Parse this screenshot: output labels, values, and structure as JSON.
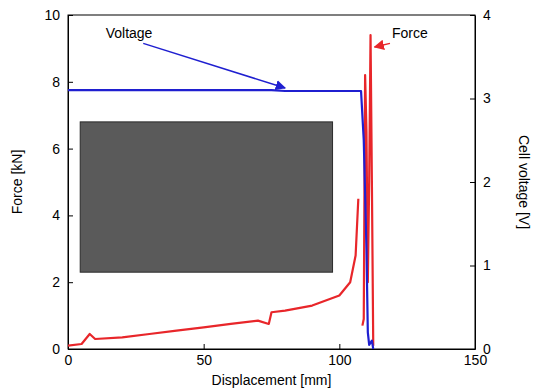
{
  "chart_data": {
    "type": "line",
    "x_label": "Displacement [mm]",
    "y_label": "Force [kN]",
    "y2_label": "Cell voltage [V]",
    "xlim": [
      0,
      150
    ],
    "xticks": [
      0,
      50,
      100,
      150
    ],
    "ylim": [
      0,
      10
    ],
    "yticks": [
      0,
      2,
      4,
      6,
      8,
      10
    ],
    "y2lim": [
      0,
      4
    ],
    "y2ticks": [
      0,
      1,
      2,
      3,
      4
    ],
    "grid": false,
    "series": [
      {
        "name": "Force",
        "color": "#e8262a",
        "axis": "y",
        "x": [
          0,
          5,
          8,
          10,
          20,
          30,
          40,
          50,
          60,
          70,
          74,
          75,
          80,
          90,
          100,
          104,
          106,
          107,
          108,
          108.5,
          109,
          109.5,
          110,
          110.5,
          111,
          111.5,
          112,
          112.5
        ],
        "values": [
          0.1,
          0.15,
          0.45,
          0.3,
          0.35,
          0.45,
          0.55,
          0.65,
          0.75,
          0.85,
          0.75,
          1.1,
          1.15,
          1.3,
          1.6,
          2.0,
          2.8,
          4.5,
          null,
          0.7,
          0.9,
          8.2,
          6.5,
          2.0,
          5.0,
          9.4,
          5.0,
          0.1
        ]
      },
      {
        "name": "Voltage",
        "color": "#1f1fd0",
        "axis": "y2",
        "x": [
          0,
          50,
          75,
          80,
          100,
          108,
          109,
          110,
          110.5,
          111,
          112,
          112.5
        ],
        "values": [
          3.1,
          3.1,
          3.1,
          3.09,
          3.09,
          3.09,
          2.5,
          1.2,
          0.2,
          0.05,
          0.1,
          0
        ]
      }
    ]
  }
}
